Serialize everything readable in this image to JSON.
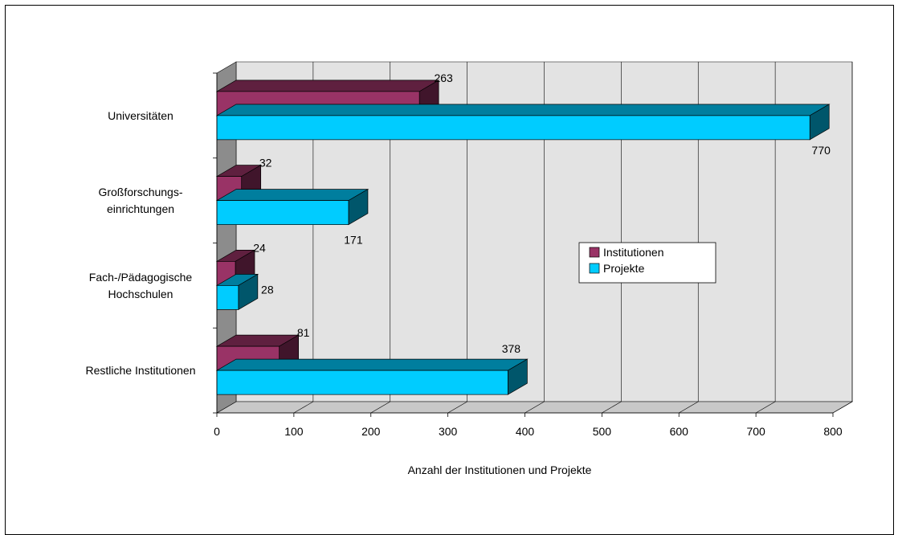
{
  "chart_data": {
    "type": "bar",
    "orientation": "horizontal",
    "three_d": true,
    "title": "",
    "xlabel": "Anzahl der Institutionen und Projekte",
    "ylabel": "",
    "xlim": [
      0,
      800
    ],
    "xticks": [
      "0",
      "100",
      "200",
      "300",
      "400",
      "500",
      "600",
      "700",
      "800"
    ],
    "grid": true,
    "legend_position": "right",
    "categories": [
      [
        "Universitäten"
      ],
      [
        "Großforschungs-",
        "einrichtungen"
      ],
      [
        "Fach-/Pädagogische",
        "Hochschulen"
      ],
      [
        "Restliche Institutionen"
      ]
    ],
    "series": [
      {
        "name": "Institutionen",
        "values": [
          263,
          32,
          24,
          81
        ],
        "color": "#993366"
      },
      {
        "name": "Projekte",
        "values": [
          770,
          171,
          28,
          378
        ],
        "color": "#00CCFF"
      }
    ]
  }
}
